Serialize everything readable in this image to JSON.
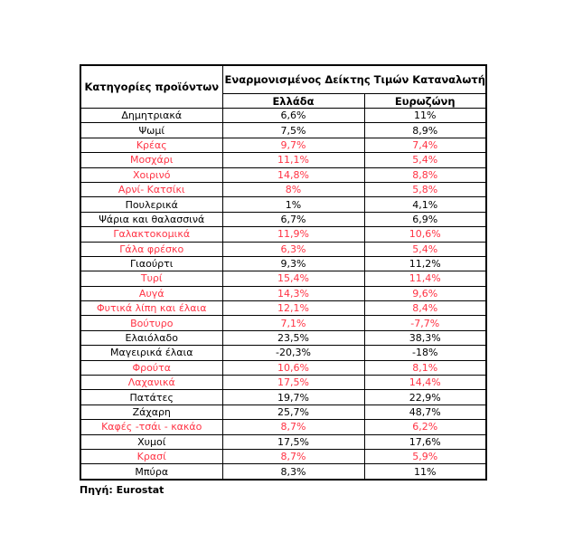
{
  "table": {
    "header": {
      "category_label": "Κατηγορίες προϊόντων",
      "group_label": "Εναρμονισμένος Δείκτης Τιμών Καταναλωτή",
      "greece_label": "Ελλάδα",
      "eurozone_label": "Ευρωζώνη"
    },
    "rows": [
      {
        "category": "Δημητριακά",
        "greece": "6,6%",
        "eurozone": "11%",
        "highlight": false
      },
      {
        "category": "Ψωμί",
        "greece": "7,5%",
        "eurozone": "8,9%",
        "highlight": false
      },
      {
        "category": "Κρέας",
        "greece": "9,7%",
        "eurozone": "7,4%",
        "highlight": true
      },
      {
        "category": "Μοσχάρι",
        "greece": "11,1%",
        "eurozone": "5,4%",
        "highlight": true
      },
      {
        "category": "Χοιρινό",
        "greece": "14,8%",
        "eurozone": "8,8%",
        "highlight": true
      },
      {
        "category": "Αρνί- Κατσίκι",
        "greece": "8%",
        "eurozone": "5,8%",
        "highlight": true
      },
      {
        "category": "Πουλερικά",
        "greece": "1%",
        "eurozone": "4,1%",
        "highlight": false
      },
      {
        "category": "Ψάρια και θαλασσινά",
        "greece": "6,7%",
        "eurozone": "6,9%",
        "highlight": false
      },
      {
        "category": "Γαλακτοκομικά",
        "greece": "11,9%",
        "eurozone": "10,6%",
        "highlight": true
      },
      {
        "category": "Γάλα φρέσκο",
        "greece": "6,3%",
        "eurozone": "5,4%",
        "highlight": true
      },
      {
        "category": "Γιαούρτι",
        "greece": "9,3%",
        "eurozone": "11,2%",
        "highlight": false
      },
      {
        "category": "Τυρί",
        "greece": "15,4%",
        "eurozone": "11,4%",
        "highlight": true
      },
      {
        "category": "Αυγά",
        "greece": "14,3%",
        "eurozone": "9,6%",
        "highlight": true
      },
      {
        "category": "Φυτικά λίπη και έλαια",
        "greece": "12,1%",
        "eurozone": "8,4%",
        "highlight": true
      },
      {
        "category": "Βούτυρο",
        "greece": "7,1%",
        "eurozone": "-7,7%",
        "highlight": true
      },
      {
        "category": "Ελαιόλαδο",
        "greece": "23,5%",
        "eurozone": "38,3%",
        "highlight": false
      },
      {
        "category": "Μαγειρικά έλαια",
        "greece": "-20,3%",
        "eurozone": "-18%",
        "highlight": false
      },
      {
        "category": "Φρούτα",
        "greece": "10,6%",
        "eurozone": "8,1%",
        "highlight": true
      },
      {
        "category": "Λαχανικά",
        "greece": "17,5%",
        "eurozone": "14,4%",
        "highlight": true
      },
      {
        "category": "Πατάτες",
        "greece": "19,7%",
        "eurozone": "22,9%",
        "highlight": false
      },
      {
        "category": "Ζάχαρη",
        "greece": "25,7%",
        "eurozone": "48,7%",
        "highlight": false
      },
      {
        "category": "Καφές -τσάι - κακάο",
        "greece": "8,7%",
        "eurozone": "6,2%",
        "highlight": true
      },
      {
        "category": "Χυμοί",
        "greece": "17,5%",
        "eurozone": "17,6%",
        "highlight": false
      },
      {
        "category": "Κρασί",
        "greece": "8,7%",
        "eurozone": "5,9%",
        "highlight": true
      },
      {
        "category": "Μπύρα",
        "greece": "8,3%",
        "eurozone": "11%",
        "highlight": false
      }
    ]
  },
  "footer": {
    "source_label": "Πηγή: Eurostat"
  },
  "colors": {
    "highlight_red": "#FF3344",
    "text_black": "#000000",
    "border_black": "#000000"
  },
  "chart_data": {
    "type": "table",
    "title": "Εναρμονισμένος Δείκτης Τιμών Καταναλωτή",
    "categories": [
      "Δημητριακά",
      "Ψωμί",
      "Κρέας",
      "Μοσχάρι",
      "Χοιρινό",
      "Αρνί- Κατσίκι",
      "Πουλερικά",
      "Ψάρια και θαλασσινά",
      "Γαλακτοκομικά",
      "Γάλα φρέσκο",
      "Γιαούρτι",
      "Τυρί",
      "Αυγά",
      "Φυτικά λίπη και έλαια",
      "Βούτυρο",
      "Ελαιόλαδο",
      "Μαγειρικά έλαια",
      "Φρούτα",
      "Λαχανικά",
      "Πατάτες",
      "Ζάχαρη",
      "Καφές -τσάι - κακάο",
      "Χυμοί",
      "Κρασί",
      "Μπύρα"
    ],
    "series": [
      {
        "name": "Ελλάδα",
        "values": [
          6.6,
          7.5,
          9.7,
          11.1,
          14.8,
          8,
          1,
          6.7,
          11.9,
          6.3,
          9.3,
          15.4,
          14.3,
          12.1,
          7.1,
          23.5,
          -20.3,
          10.6,
          17.5,
          19.7,
          25.7,
          8.7,
          17.5,
          8.7,
          8.3
        ]
      },
      {
        "name": "Ευρωζώνη",
        "values": [
          11,
          8.9,
          7.4,
          5.4,
          8.8,
          5.8,
          4.1,
          6.9,
          10.6,
          5.4,
          11.2,
          11.4,
          9.6,
          8.4,
          -7.7,
          38.3,
          -18,
          8.1,
          14.4,
          22.9,
          48.7,
          6.2,
          17.6,
          5.9,
          11
        ]
      }
    ],
    "unit": "%",
    "highlighted_rows": [
      "Κρέας",
      "Μοσχάρι",
      "Χοιρινό",
      "Αρνί- Κατσίκι",
      "Γαλακτοκομικά",
      "Γάλα φρέσκο",
      "Τυρί",
      "Αυγά",
      "Φυτικά λίπη και έλαια",
      "Βούτυρο",
      "Φρούτα",
      "Λαχανικά",
      "Καφές -τσάι - κακάο",
      "Κρασί"
    ],
    "source": "Πηγή: Eurostat"
  }
}
